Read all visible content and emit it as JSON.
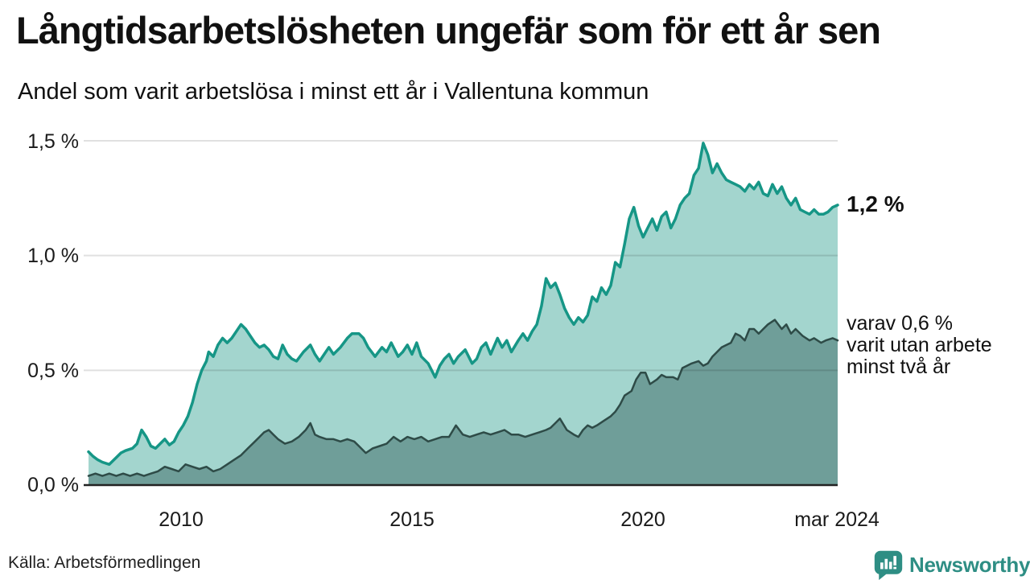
{
  "header": {
    "title": "Långtidsarbetslösheten ungefär som för ett år sen",
    "subtitle": "Andel som varit arbetslösa i minst ett år i Vallentuna kommun"
  },
  "footer": {
    "source": "Källa: Arbetsförmedlingen",
    "logo_text": "Newsworthy",
    "logo_color": "#2e8e84"
  },
  "chart_data": {
    "type": "area",
    "title": "Långtidsarbetslösheten ungefär som för ett år sen",
    "subtitle": "Andel som varit arbetslösa i minst ett år i Vallentuna kommun",
    "unit": "%",
    "grid": true,
    "xlim": [
      2008.0,
      2024.21
    ],
    "ylim": [
      0,
      1.5
    ],
    "x_ticks": [
      2010,
      2015,
      2020,
      2024.21
    ],
    "x_tick_labels": [
      "2010",
      "2015",
      "2020",
      "mar 2024"
    ],
    "y_ticks": [
      0,
      0.5,
      1.0,
      1.5
    ],
    "y_tick_labels": [
      "0,0 %",
      "0,5 %",
      "1,0 %",
      "1,5 %"
    ],
    "gridline_color": "rgba(0,0,0,0.12)",
    "axis_color": "#222222",
    "annotations": {
      "total_end_label": "1,2 %",
      "sub_end_label_lines": [
        "varav 0,6 %",
        "varit utan arbete",
        "minst två år"
      ]
    },
    "series": [
      {
        "name": "Arbetslösa minst ett år (totalt)",
        "end_value": 1.2,
        "line_color": "#169686",
        "fill_color": "#a3d5ce",
        "line_width": 3.5,
        "points": [
          [
            2008.0,
            0.145
          ],
          [
            2008.1,
            0.125
          ],
          [
            2008.2,
            0.11
          ],
          [
            2008.3,
            0.1
          ],
          [
            2008.45,
            0.09
          ],
          [
            2008.6,
            0.12
          ],
          [
            2008.7,
            0.14
          ],
          [
            2008.8,
            0.15
          ],
          [
            2008.95,
            0.16
          ],
          [
            2009.05,
            0.18
          ],
          [
            2009.15,
            0.24
          ],
          [
            2009.25,
            0.21
          ],
          [
            2009.35,
            0.17
          ],
          [
            2009.45,
            0.16
          ],
          [
            2009.55,
            0.18
          ],
          [
            2009.65,
            0.2
          ],
          [
            2009.75,
            0.175
          ],
          [
            2009.85,
            0.19
          ],
          [
            2009.95,
            0.23
          ],
          [
            2010.05,
            0.26
          ],
          [
            2010.15,
            0.3
          ],
          [
            2010.25,
            0.36
          ],
          [
            2010.35,
            0.44
          ],
          [
            2010.45,
            0.5
          ],
          [
            2010.55,
            0.54
          ],
          [
            2010.6,
            0.58
          ],
          [
            2010.7,
            0.56
          ],
          [
            2010.8,
            0.61
          ],
          [
            2010.9,
            0.64
          ],
          [
            2011.0,
            0.62
          ],
          [
            2011.1,
            0.64
          ],
          [
            2011.2,
            0.67
          ],
          [
            2011.3,
            0.7
          ],
          [
            2011.4,
            0.68
          ],
          [
            2011.5,
            0.65
          ],
          [
            2011.6,
            0.62
          ],
          [
            2011.7,
            0.6
          ],
          [
            2011.8,
            0.61
          ],
          [
            2011.9,
            0.59
          ],
          [
            2012.0,
            0.56
          ],
          [
            2012.1,
            0.55
          ],
          [
            2012.2,
            0.61
          ],
          [
            2012.3,
            0.57
          ],
          [
            2012.4,
            0.55
          ],
          [
            2012.5,
            0.54
          ],
          [
            2012.65,
            0.58
          ],
          [
            2012.8,
            0.61
          ],
          [
            2012.9,
            0.57
          ],
          [
            2013.0,
            0.54
          ],
          [
            2013.1,
            0.57
          ],
          [
            2013.2,
            0.6
          ],
          [
            2013.3,
            0.57
          ],
          [
            2013.45,
            0.6
          ],
          [
            2013.6,
            0.64
          ],
          [
            2013.7,
            0.66
          ],
          [
            2013.85,
            0.66
          ],
          [
            2013.95,
            0.64
          ],
          [
            2014.05,
            0.6
          ],
          [
            2014.2,
            0.56
          ],
          [
            2014.35,
            0.6
          ],
          [
            2014.45,
            0.58
          ],
          [
            2014.55,
            0.62
          ],
          [
            2014.7,
            0.56
          ],
          [
            2014.8,
            0.58
          ],
          [
            2014.9,
            0.61
          ],
          [
            2015.0,
            0.57
          ],
          [
            2015.1,
            0.62
          ],
          [
            2015.2,
            0.56
          ],
          [
            2015.35,
            0.53
          ],
          [
            2015.5,
            0.47
          ],
          [
            2015.6,
            0.52
          ],
          [
            2015.7,
            0.55
          ],
          [
            2015.8,
            0.57
          ],
          [
            2015.9,
            0.53
          ],
          [
            2016.0,
            0.56
          ],
          [
            2016.15,
            0.59
          ],
          [
            2016.3,
            0.53
          ],
          [
            2016.4,
            0.55
          ],
          [
            2016.5,
            0.6
          ],
          [
            2016.6,
            0.62
          ],
          [
            2016.7,
            0.57
          ],
          [
            2016.85,
            0.64
          ],
          [
            2016.95,
            0.6
          ],
          [
            2017.05,
            0.63
          ],
          [
            2017.15,
            0.58
          ],
          [
            2017.3,
            0.63
          ],
          [
            2017.4,
            0.66
          ],
          [
            2017.5,
            0.63
          ],
          [
            2017.6,
            0.67
          ],
          [
            2017.7,
            0.7
          ],
          [
            2017.8,
            0.78
          ],
          [
            2017.9,
            0.9
          ],
          [
            2018.0,
            0.86
          ],
          [
            2018.1,
            0.88
          ],
          [
            2018.2,
            0.83
          ],
          [
            2018.3,
            0.77
          ],
          [
            2018.4,
            0.73
          ],
          [
            2018.5,
            0.7
          ],
          [
            2018.6,
            0.73
          ],
          [
            2018.7,
            0.71
          ],
          [
            2018.8,
            0.74
          ],
          [
            2018.9,
            0.82
          ],
          [
            2019.0,
            0.8
          ],
          [
            2019.1,
            0.86
          ],
          [
            2019.2,
            0.83
          ],
          [
            2019.3,
            0.87
          ],
          [
            2019.4,
            0.97
          ],
          [
            2019.5,
            0.95
          ],
          [
            2019.6,
            1.05
          ],
          [
            2019.7,
            1.16
          ],
          [
            2019.8,
            1.21
          ],
          [
            2019.9,
            1.13
          ],
          [
            2020.0,
            1.08
          ],
          [
            2020.1,
            1.12
          ],
          [
            2020.2,
            1.16
          ],
          [
            2020.3,
            1.11
          ],
          [
            2020.4,
            1.17
          ],
          [
            2020.5,
            1.19
          ],
          [
            2020.6,
            1.12
          ],
          [
            2020.7,
            1.16
          ],
          [
            2020.8,
            1.22
          ],
          [
            2020.9,
            1.25
          ],
          [
            2021.0,
            1.27
          ],
          [
            2021.1,
            1.35
          ],
          [
            2021.2,
            1.38
          ],
          [
            2021.3,
            1.49
          ],
          [
            2021.4,
            1.44
          ],
          [
            2021.5,
            1.36
          ],
          [
            2021.6,
            1.4
          ],
          [
            2021.7,
            1.36
          ],
          [
            2021.8,
            1.33
          ],
          [
            2021.9,
            1.32
          ],
          [
            2022.0,
            1.31
          ],
          [
            2022.1,
            1.3
          ],
          [
            2022.2,
            1.28
          ],
          [
            2022.3,
            1.31
          ],
          [
            2022.4,
            1.29
          ],
          [
            2022.5,
            1.32
          ],
          [
            2022.6,
            1.27
          ],
          [
            2022.7,
            1.26
          ],
          [
            2022.8,
            1.31
          ],
          [
            2022.9,
            1.27
          ],
          [
            2023.0,
            1.3
          ],
          [
            2023.1,
            1.25
          ],
          [
            2023.2,
            1.22
          ],
          [
            2023.3,
            1.25
          ],
          [
            2023.4,
            1.2
          ],
          [
            2023.5,
            1.19
          ],
          [
            2023.6,
            1.18
          ],
          [
            2023.7,
            1.2
          ],
          [
            2023.8,
            1.18
          ],
          [
            2023.9,
            1.18
          ],
          [
            2024.0,
            1.19
          ],
          [
            2024.1,
            1.21
          ],
          [
            2024.21,
            1.22
          ]
        ]
      },
      {
        "name": "Varav utan arbete minst två år",
        "end_value": 0.6,
        "line_color": "#2e4b47",
        "fill_color": "#6f9e99",
        "line_width": 2.5,
        "points": [
          [
            2008.0,
            0.04
          ],
          [
            2008.15,
            0.05
          ],
          [
            2008.3,
            0.04
          ],
          [
            2008.45,
            0.05
          ],
          [
            2008.6,
            0.04
          ],
          [
            2008.75,
            0.05
          ],
          [
            2008.9,
            0.04
          ],
          [
            2009.05,
            0.05
          ],
          [
            2009.2,
            0.04
          ],
          [
            2009.35,
            0.05
          ],
          [
            2009.5,
            0.06
          ],
          [
            2009.65,
            0.08
          ],
          [
            2009.8,
            0.07
          ],
          [
            2009.95,
            0.06
          ],
          [
            2010.1,
            0.09
          ],
          [
            2010.25,
            0.08
          ],
          [
            2010.4,
            0.07
          ],
          [
            2010.55,
            0.08
          ],
          [
            2010.7,
            0.06
          ],
          [
            2010.85,
            0.07
          ],
          [
            2011.0,
            0.09
          ],
          [
            2011.15,
            0.11
          ],
          [
            2011.3,
            0.13
          ],
          [
            2011.45,
            0.16
          ],
          [
            2011.6,
            0.19
          ],
          [
            2011.7,
            0.21
          ],
          [
            2011.8,
            0.23
          ],
          [
            2011.9,
            0.24
          ],
          [
            2012.0,
            0.22
          ],
          [
            2012.1,
            0.2
          ],
          [
            2012.25,
            0.18
          ],
          [
            2012.4,
            0.19
          ],
          [
            2012.55,
            0.21
          ],
          [
            2012.7,
            0.24
          ],
          [
            2012.8,
            0.27
          ],
          [
            2012.9,
            0.22
          ],
          [
            2013.0,
            0.21
          ],
          [
            2013.15,
            0.2
          ],
          [
            2013.3,
            0.2
          ],
          [
            2013.45,
            0.19
          ],
          [
            2013.6,
            0.2
          ],
          [
            2013.75,
            0.19
          ],
          [
            2013.85,
            0.17
          ],
          [
            2014.0,
            0.14
          ],
          [
            2014.15,
            0.16
          ],
          [
            2014.3,
            0.17
          ],
          [
            2014.45,
            0.18
          ],
          [
            2014.6,
            0.21
          ],
          [
            2014.75,
            0.19
          ],
          [
            2014.9,
            0.21
          ],
          [
            2015.05,
            0.2
          ],
          [
            2015.2,
            0.21
          ],
          [
            2015.35,
            0.19
          ],
          [
            2015.5,
            0.2
          ],
          [
            2015.65,
            0.21
          ],
          [
            2015.8,
            0.21
          ],
          [
            2015.95,
            0.26
          ],
          [
            2016.1,
            0.22
          ],
          [
            2016.25,
            0.21
          ],
          [
            2016.4,
            0.22
          ],
          [
            2016.55,
            0.23
          ],
          [
            2016.7,
            0.22
          ],
          [
            2016.85,
            0.23
          ],
          [
            2017.0,
            0.24
          ],
          [
            2017.15,
            0.22
          ],
          [
            2017.3,
            0.22
          ],
          [
            2017.45,
            0.21
          ],
          [
            2017.6,
            0.22
          ],
          [
            2017.75,
            0.23
          ],
          [
            2017.9,
            0.24
          ],
          [
            2018.0,
            0.25
          ],
          [
            2018.1,
            0.27
          ],
          [
            2018.2,
            0.29
          ],
          [
            2018.35,
            0.24
          ],
          [
            2018.5,
            0.22
          ],
          [
            2018.6,
            0.21
          ],
          [
            2018.7,
            0.24
          ],
          [
            2018.8,
            0.26
          ],
          [
            2018.9,
            0.25
          ],
          [
            2019.0,
            0.26
          ],
          [
            2019.15,
            0.28
          ],
          [
            2019.3,
            0.3
          ],
          [
            2019.4,
            0.32
          ],
          [
            2019.5,
            0.35
          ],
          [
            2019.6,
            0.39
          ],
          [
            2019.75,
            0.41
          ],
          [
            2019.85,
            0.46
          ],
          [
            2019.95,
            0.49
          ],
          [
            2020.05,
            0.49
          ],
          [
            2020.15,
            0.44
          ],
          [
            2020.3,
            0.46
          ],
          [
            2020.4,
            0.48
          ],
          [
            2020.5,
            0.47
          ],
          [
            2020.65,
            0.47
          ],
          [
            2020.75,
            0.46
          ],
          [
            2020.85,
            0.51
          ],
          [
            2020.95,
            0.52
          ],
          [
            2021.05,
            0.53
          ],
          [
            2021.2,
            0.54
          ],
          [
            2021.3,
            0.52
          ],
          [
            2021.4,
            0.53
          ],
          [
            2021.5,
            0.56
          ],
          [
            2021.6,
            0.58
          ],
          [
            2021.7,
            0.6
          ],
          [
            2021.8,
            0.61
          ],
          [
            2021.9,
            0.62
          ],
          [
            2022.0,
            0.66
          ],
          [
            2022.1,
            0.65
          ],
          [
            2022.2,
            0.63
          ],
          [
            2022.3,
            0.68
          ],
          [
            2022.4,
            0.68
          ],
          [
            2022.5,
            0.66
          ],
          [
            2022.6,
            0.68
          ],
          [
            2022.7,
            0.7
          ],
          [
            2022.85,
            0.72
          ],
          [
            2023.0,
            0.68
          ],
          [
            2023.1,
            0.7
          ],
          [
            2023.2,
            0.66
          ],
          [
            2023.3,
            0.68
          ],
          [
            2023.45,
            0.65
          ],
          [
            2023.6,
            0.63
          ],
          [
            2023.7,
            0.64
          ],
          [
            2023.85,
            0.62
          ],
          [
            2023.95,
            0.63
          ],
          [
            2024.1,
            0.64
          ],
          [
            2024.21,
            0.63
          ]
        ]
      }
    ]
  }
}
